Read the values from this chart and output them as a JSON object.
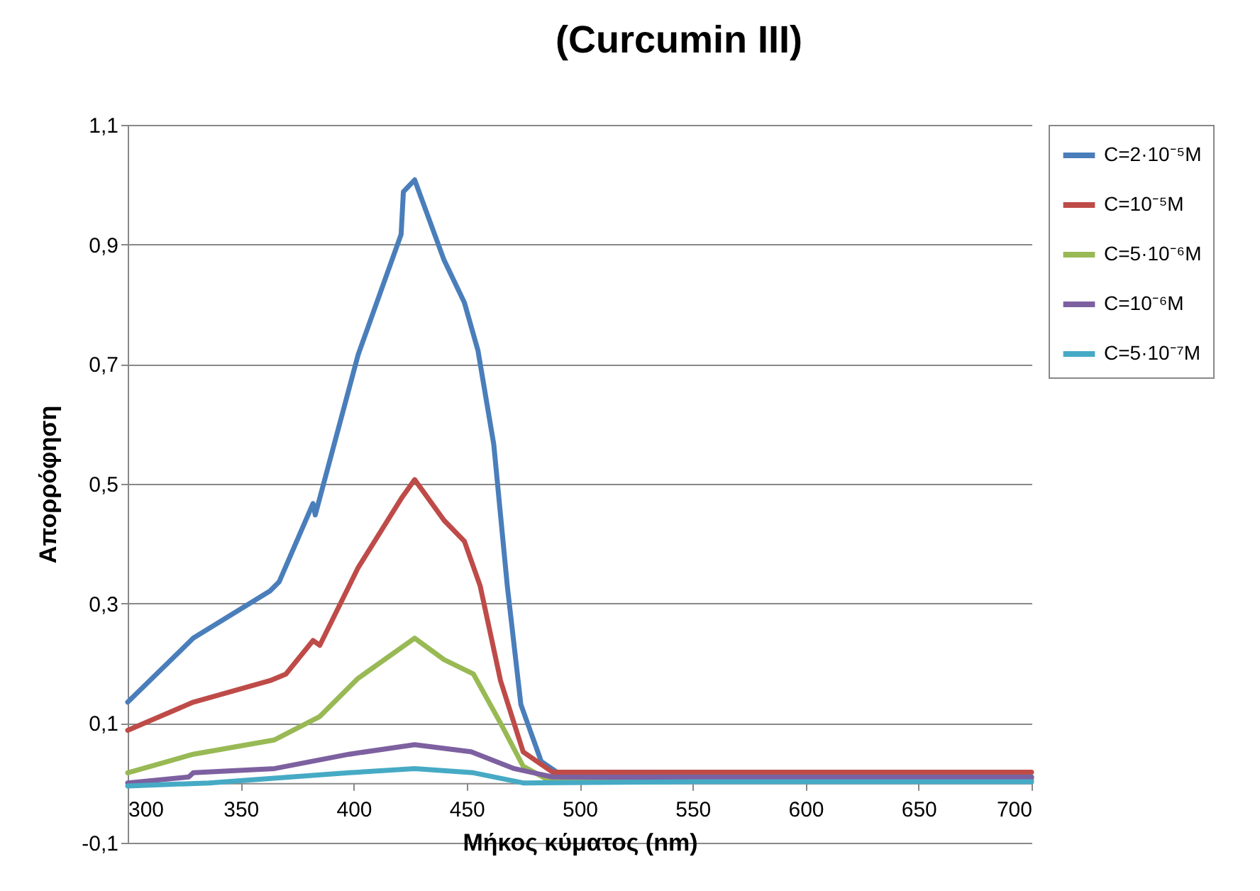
{
  "chart_data": {
    "type": "line",
    "title": "(Curcumin III)",
    "xlabel": "Μήκος κύματος (nm)",
    "ylabel": "Απορρόφηση",
    "x": [
      300,
      329,
      363,
      367,
      382,
      383,
      402,
      421,
      422,
      427,
      440,
      449,
      455,
      462,
      468,
      474,
      483,
      493,
      550,
      600,
      650,
      700
    ],
    "series": [
      {
        "name": "C=2·10⁻⁵M",
        "color": "#4a7ebb",
        "values": [
          0.135,
          0.242,
          0.321,
          0.336,
          0.467,
          0.448,
          0.716,
          0.917,
          0.988,
          1.008,
          0.874,
          0.803,
          0.723,
          0.566,
          0.329,
          0.131,
          0.036,
          0.01,
          0.01,
          0.01,
          0.01,
          0.01
        ]
      },
      {
        "name": "C=10⁻⁵M",
        "color": "#be4b48",
        "x": [
          300,
          329,
          363,
          370,
          382,
          385,
          402,
          421,
          427,
          440,
          449,
          456,
          465,
          475,
          488,
          550,
          600,
          650,
          700
        ],
        "values": [
          0.088,
          0.135,
          0.171,
          0.182,
          0.238,
          0.23,
          0.36,
          0.475,
          0.507,
          0.439,
          0.404,
          0.329,
          0.171,
          0.052,
          0.018,
          0.018,
          0.018,
          0.018,
          0.018
        ]
      },
      {
        "name": "C=5·10⁻⁶M",
        "color": "#98b954",
        "x": [
          300,
          329,
          365,
          385,
          402,
          427,
          440,
          453,
          465,
          475,
          486,
          550,
          600,
          650,
          700
        ],
        "values": [
          0.017,
          0.048,
          0.072,
          0.111,
          0.175,
          0.242,
          0.206,
          0.182,
          0.1,
          0.028,
          0.005,
          0.005,
          0.005,
          0.005,
          0.005
        ]
      },
      {
        "name": "C=10⁻⁶M",
        "color": "#7d60a0",
        "x": [
          300,
          327,
          329,
          365,
          398,
          427,
          452,
          471,
          488,
          550,
          600,
          650,
          700
        ],
        "values": [
          0.0,
          0.01,
          0.017,
          0.024,
          0.048,
          0.064,
          0.052,
          0.024,
          0.01,
          0.009,
          0.009,
          0.009,
          0.009
        ]
      },
      {
        "name": "C=5·10⁻⁷M",
        "color": "#46aac5",
        "x": [
          300,
          336,
          398,
          427,
          453,
          475,
          550,
          600,
          650,
          700
        ],
        "values": [
          -0.005,
          0.0,
          0.017,
          0.024,
          0.017,
          0.0,
          0.002,
          0.002,
          0.002,
          0.002
        ]
      }
    ],
    "xlim": [
      300,
      700
    ],
    "xticks": [
      300,
      350,
      400,
      450,
      500,
      550,
      600,
      650,
      700
    ],
    "ylim": [
      -0.1,
      1.1
    ],
    "yticks": [
      {
        "value": -0.1,
        "label": "-0,1"
      },
      {
        "value": 0.1,
        "label": "0,1"
      },
      {
        "value": 0.3,
        "label": "0,3"
      },
      {
        "value": 0.5,
        "label": "0,5"
      },
      {
        "value": 0.7,
        "label": "0,7"
      },
      {
        "value": 0.9,
        "label": "0,9"
      },
      {
        "value": 1.1,
        "label": "1,1"
      }
    ],
    "grid": "y",
    "legend": "top right",
    "line_style": "solid"
  }
}
